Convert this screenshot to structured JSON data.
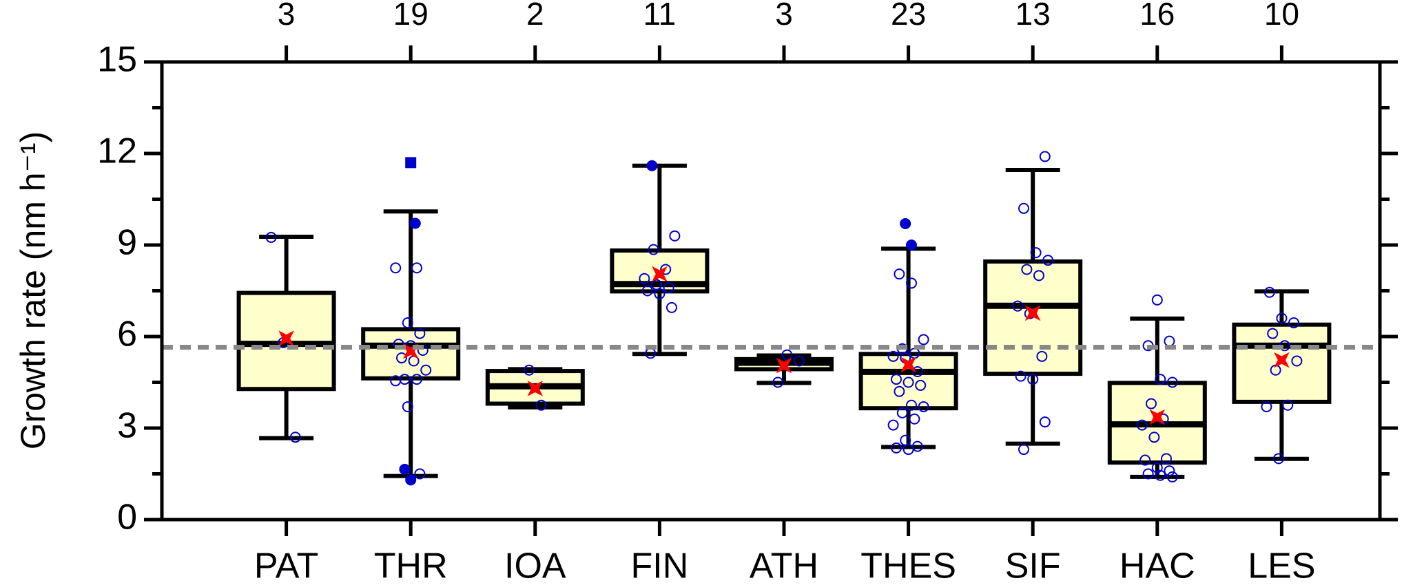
{
  "chart_data": {
    "type": "box",
    "ylabel": "Growth rate (nm h⁻¹)",
    "categories": [
      "PAT",
      "THR",
      "IOA",
      "FIN",
      "ATH",
      "THES",
      "SIF",
      "HAC",
      "LES"
    ],
    "n": [
      3,
      19,
      2,
      11,
      3,
      23,
      13,
      16,
      10
    ],
    "ylim": [
      0,
      15
    ],
    "yticks": [
      0,
      3,
      6,
      9,
      12,
      15
    ],
    "reference_line": 5.65,
    "box_color": "#ffffcc",
    "point_color": "#0000cc",
    "mean_color": "#ff0000",
    "reference_color": "#888888",
    "boxes": [
      {
        "whislo": 2.67,
        "q1": 4.28,
        "med": 5.76,
        "q3": 7.43,
        "whishi": 9.27,
        "mean": 5.94,
        "points": [
          9.25,
          5.8,
          2.7
        ]
      },
      {
        "whislo": 1.43,
        "q1": 4.63,
        "med": 5.7,
        "q3": 6.24,
        "whishi": 10.1,
        "mean": 5.52,
        "points": [
          8.25,
          8.25,
          6.45,
          6.1,
          5.75,
          5.7,
          5.55,
          5.3,
          5.2,
          4.9,
          4.6,
          4.6,
          4.55,
          3.7,
          1.5
        ],
        "outliers": [
          9.71,
          1.65,
          1.3
        ],
        "extremes": [
          11.7
        ]
      },
      {
        "whislo": 3.68,
        "q1": 3.8,
        "med": 4.37,
        "q3": 4.87,
        "whishi": 4.93,
        "mean": 4.3,
        "points": [
          4.9,
          3.75
        ]
      },
      {
        "whislo": 5.43,
        "q1": 7.48,
        "med": 7.72,
        "q3": 8.82,
        "whishi": 11.6,
        "mean": 8.05,
        "points": [
          9.3,
          8.85,
          8.2,
          7.9,
          7.7,
          7.6,
          7.5,
          7.4,
          6.95,
          5.45
        ],
        "outliers": [
          11.6
        ]
      },
      {
        "whislo": 4.48,
        "q1": 4.93,
        "med": 5.14,
        "q3": 5.26,
        "whishi": 5.38,
        "mean": 5.05,
        "points": [
          5.4,
          5.2,
          4.5
        ]
      },
      {
        "whislo": 2.38,
        "q1": 3.65,
        "med": 4.84,
        "q3": 5.43,
        "whishi": 8.88,
        "mean": 5.08,
        "points": [
          8.05,
          7.75,
          5.9,
          5.6,
          5.45,
          5.35,
          5.3,
          4.85,
          4.6,
          4.5,
          4.4,
          4.2,
          3.75,
          3.7,
          3.5,
          3.3,
          3.1,
          2.6,
          2.4,
          2.35,
          2.3
        ],
        "outliers": [
          9.7,
          9.0
        ]
      },
      {
        "whislo": 2.49,
        "q1": 4.78,
        "med": 7.01,
        "q3": 8.46,
        "whishi": 11.46,
        "mean": 6.77,
        "points": [
          11.9,
          10.2,
          8.75,
          8.5,
          8.2,
          8.0,
          7.0,
          6.75,
          5.35,
          4.7,
          4.6,
          3.2,
          2.3
        ]
      },
      {
        "whislo": 1.4,
        "q1": 1.87,
        "med": 3.12,
        "q3": 4.48,
        "whishi": 6.59,
        "mean": 3.36,
        "points": [
          7.2,
          5.85,
          5.7,
          4.6,
          4.5,
          3.8,
          3.3,
          3.1,
          2.7,
          2.0,
          1.95,
          1.7,
          1.6,
          1.5,
          1.45,
          1.4
        ]
      },
      {
        "whislo": 1.99,
        "q1": 3.86,
        "med": 5.7,
        "q3": 6.39,
        "whishi": 7.48,
        "mean": 5.23,
        "points": [
          7.45,
          6.6,
          6.45,
          6.1,
          5.7,
          5.2,
          4.9,
          3.75,
          3.7,
          2.0
        ]
      }
    ]
  }
}
